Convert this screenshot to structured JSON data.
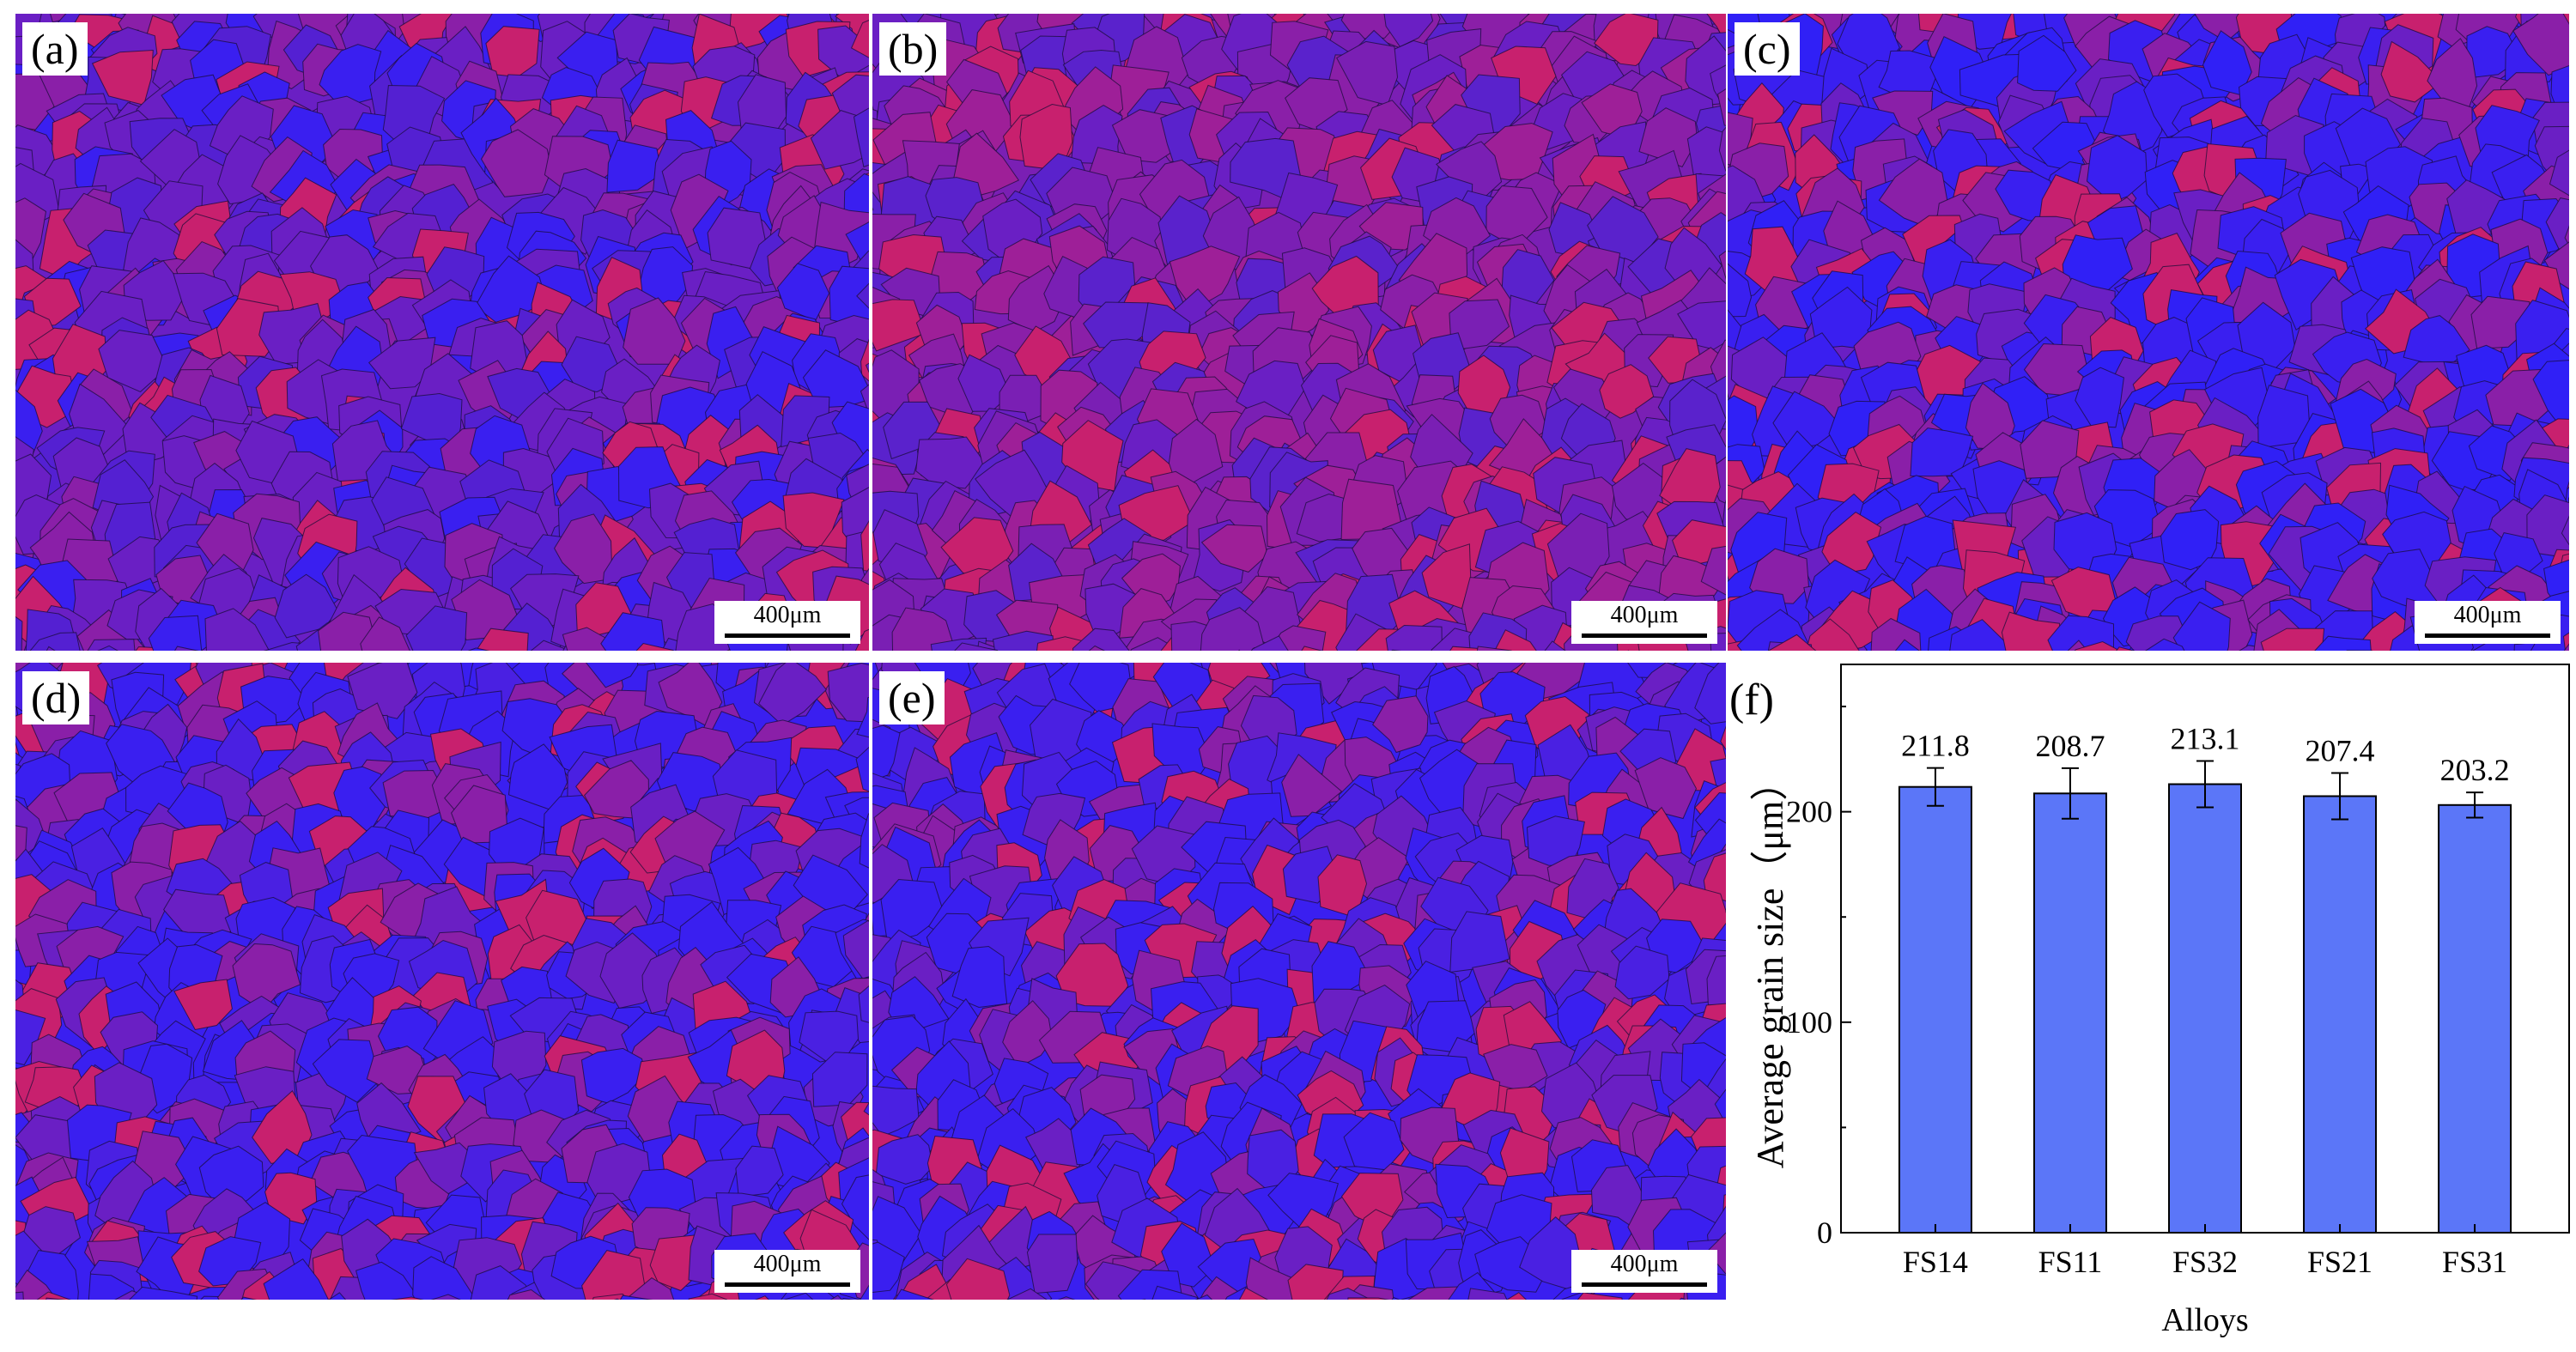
{
  "panels": [
    {
      "label": "(a)",
      "scale": "400μm"
    },
    {
      "label": "(b)",
      "scale": "400μm"
    },
    {
      "label": "(c)",
      "scale": "400μm"
    },
    {
      "label": "(d)",
      "scale": "400μm"
    },
    {
      "label": "(e)",
      "scale": "400μm"
    }
  ],
  "colors": {
    "grain_blue": "#3a1ff0",
    "grain_violet": "#6a1fc4",
    "grain_magenta": "#c8206e",
    "bar_fill": "#5b76f8",
    "boundary": "#1a0c3a"
  },
  "chart_label": "(f)",
  "chart_data": {
    "type": "bar",
    "categories": [
      "FS14",
      "FS11",
      "FS32",
      "FS21",
      "FS31"
    ],
    "values": [
      211.8,
      208.7,
      213.1,
      207.4,
      203.2
    ],
    "value_labels": [
      "211.8",
      "208.7",
      "213.1",
      "207.4",
      "203.2"
    ],
    "error": [
      9,
      12,
      11,
      11,
      6
    ],
    "ylabel": "Average grain size（μm）",
    "xlabel": "Alloys",
    "ylim": [
      0,
      270
    ],
    "yticks": [
      0,
      100,
      200
    ],
    "grid": false
  }
}
